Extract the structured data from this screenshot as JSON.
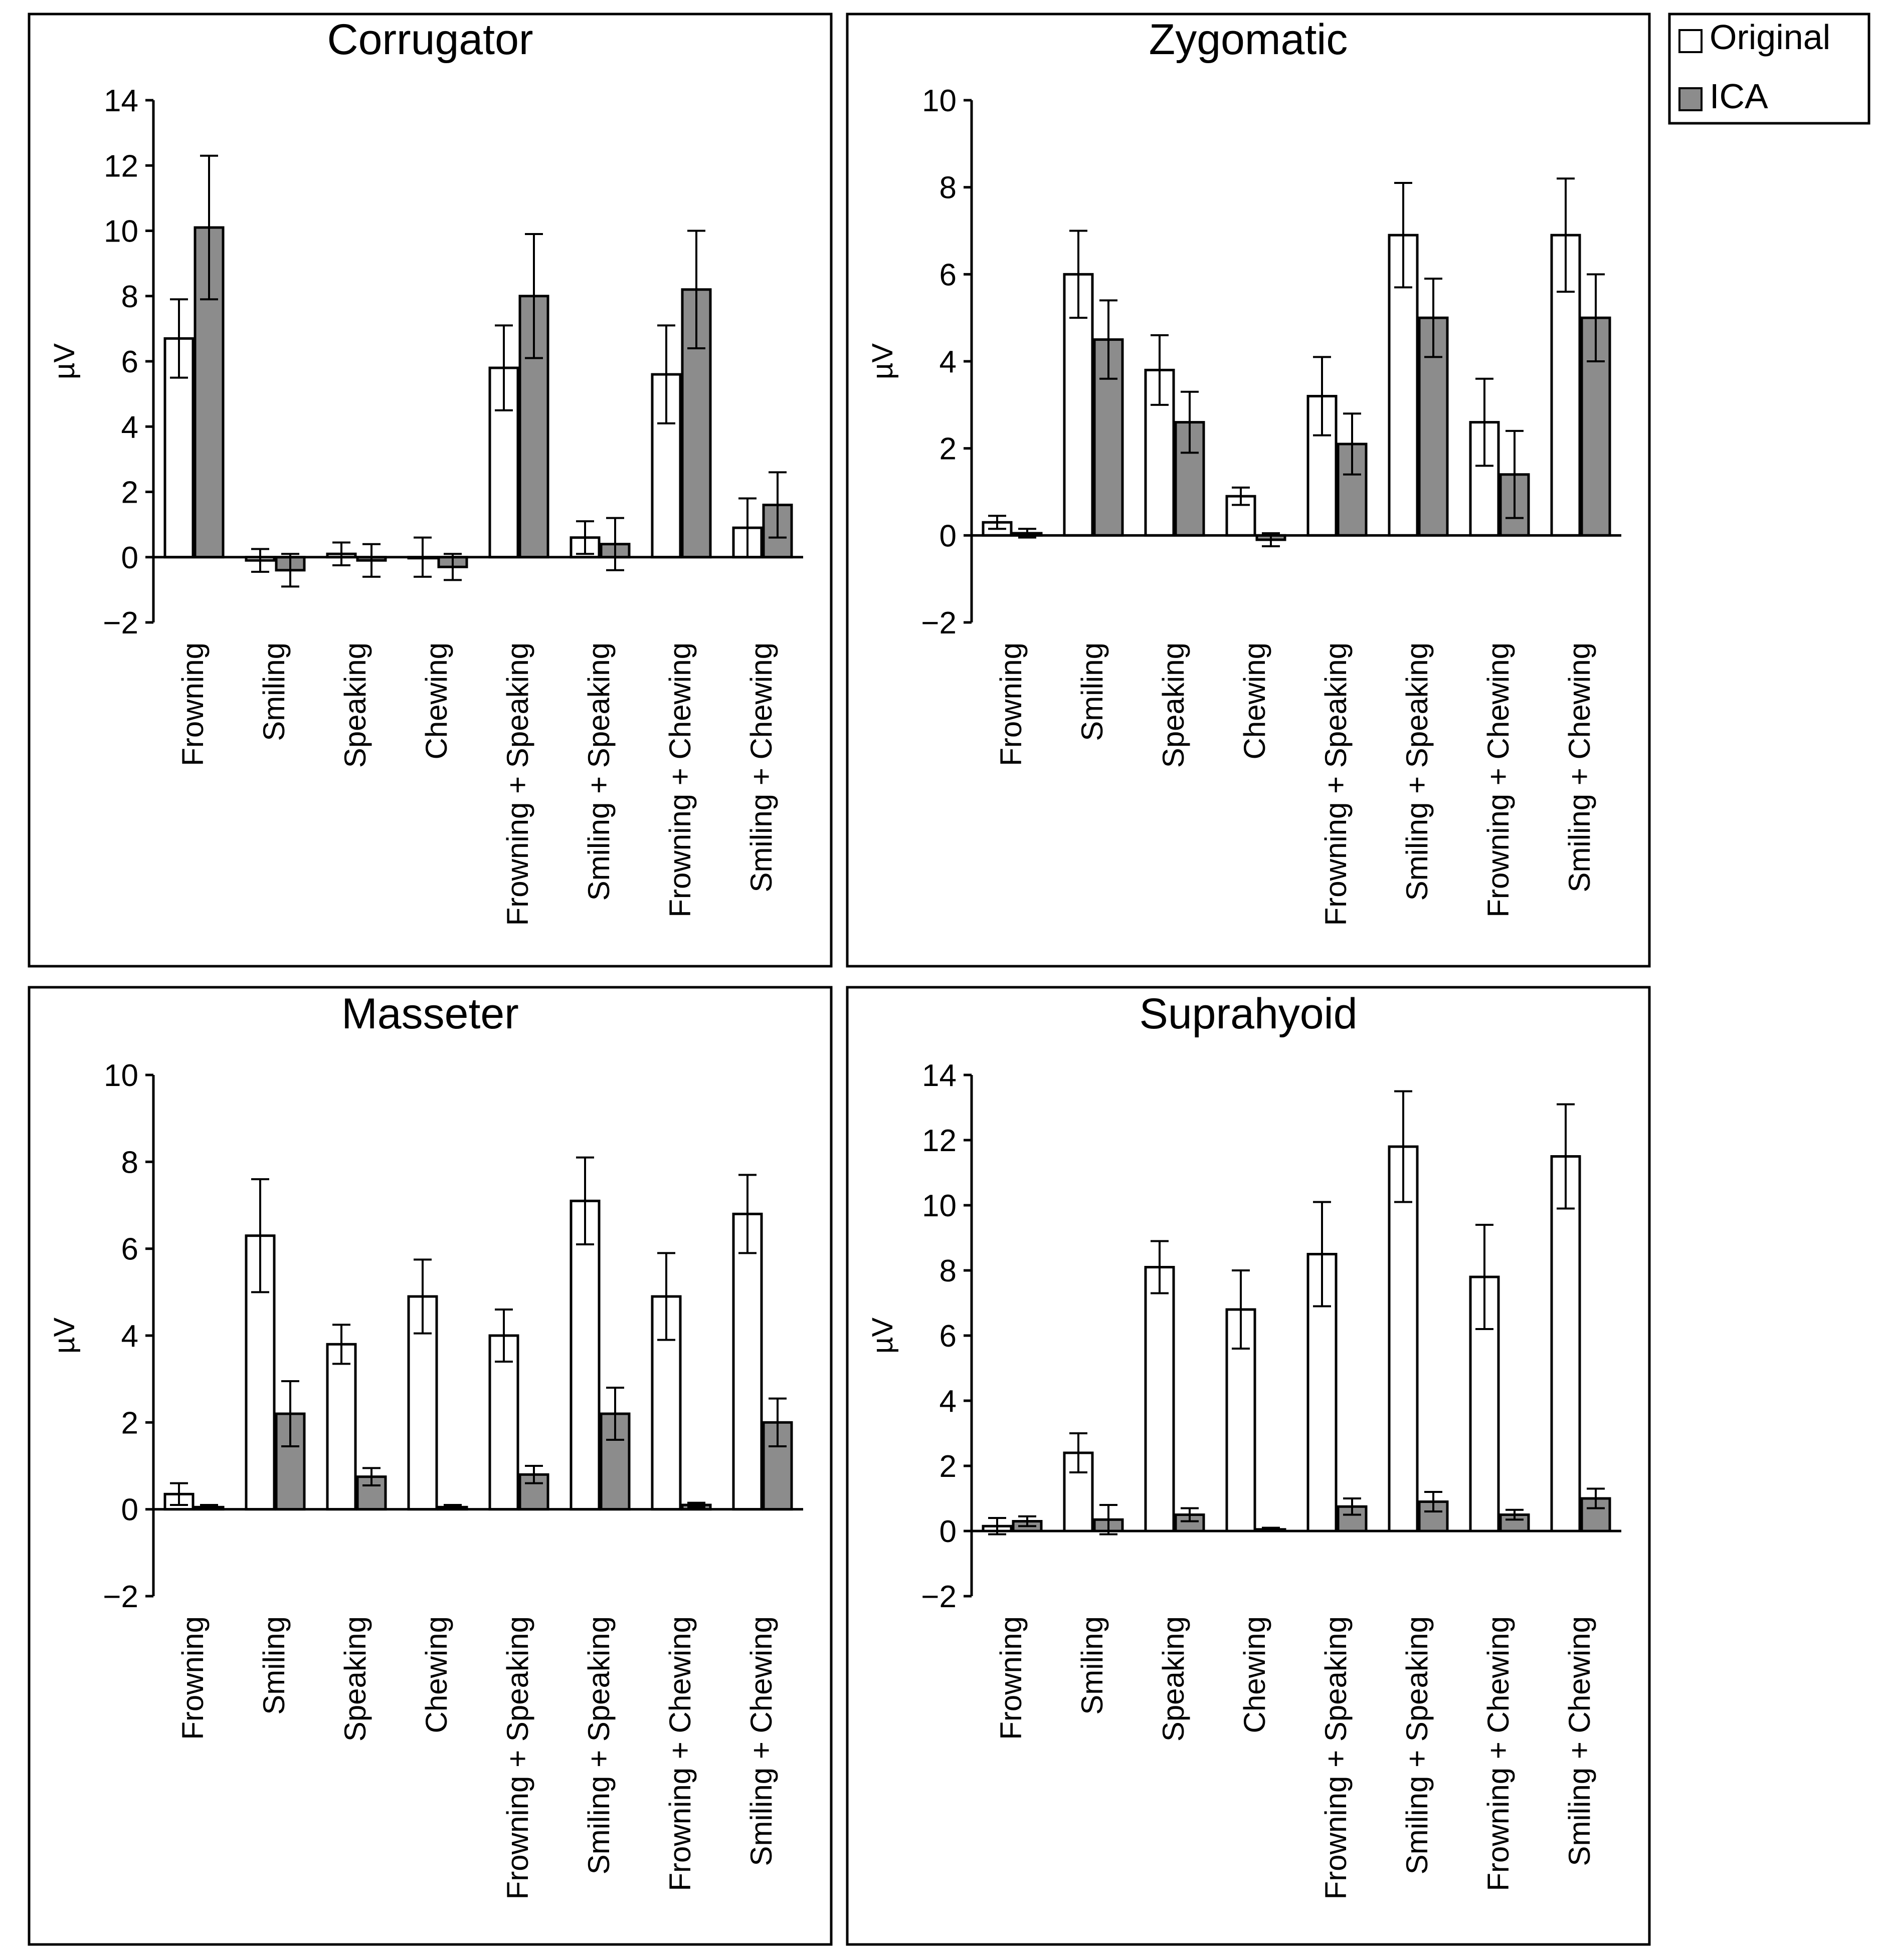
{
  "legend": {
    "entries": [
      {
        "label": "Original",
        "color": "#ffffff"
      },
      {
        "label": "ICA",
        "color": "#8c8c8c"
      }
    ]
  },
  "colors": {
    "original": "#ffffff",
    "ica": "#8c8c8c",
    "axis": "#000000"
  },
  "chart_data": [
    {
      "type": "bar",
      "title": "Corrugator",
      "ylabel": "µV",
      "ylim": [
        -2,
        14
      ],
      "yticks": [
        "14",
        "12",
        "10",
        "8",
        "6",
        "4",
        "2",
        "0",
        "−2"
      ],
      "categories": [
        "Frowning",
        "Smiling",
        "Speaking",
        "Chewing",
        "Frowning + Speaking",
        "Smiling + Speaking",
        "Frowning + Chewing",
        "Smiling + Chewing"
      ],
      "series": [
        {
          "name": "Original",
          "values": [
            6.7,
            -0.1,
            0.1,
            0.0,
            5.8,
            0.6,
            5.6,
            0.9
          ],
          "errors": [
            1.2,
            0.35,
            0.35,
            0.6,
            1.3,
            0.5,
            1.5,
            0.9
          ]
        },
        {
          "name": "ICA",
          "values": [
            10.1,
            -0.4,
            -0.1,
            -0.3,
            8.0,
            0.4,
            8.2,
            1.6
          ],
          "errors": [
            2.2,
            0.5,
            0.5,
            0.4,
            1.9,
            0.8,
            1.8,
            1.0
          ]
        }
      ]
    },
    {
      "type": "bar",
      "title": "Zygomatic",
      "ylabel": "µV",
      "ylim": [
        -2,
        10
      ],
      "yticks": [
        "10",
        "8",
        "6",
        "4",
        "2",
        "0",
        "−2"
      ],
      "categories": [
        "Frowning",
        "Smiling",
        "Speaking",
        "Chewing",
        "Frowning + Speaking",
        "Smiling + Speaking",
        "Frowning + Chewing",
        "Smiling + Chewing"
      ],
      "series": [
        {
          "name": "Original",
          "values": [
            0.3,
            6.0,
            3.8,
            0.9,
            3.2,
            6.9,
            2.6,
            6.9
          ],
          "errors": [
            0.15,
            1.0,
            0.8,
            0.2,
            0.9,
            1.2,
            1.0,
            1.3
          ]
        },
        {
          "name": "ICA",
          "values": [
            0.05,
            4.5,
            2.6,
            -0.1,
            2.1,
            5.0,
            1.4,
            5.0
          ],
          "errors": [
            0.1,
            0.9,
            0.7,
            0.15,
            0.7,
            0.9,
            1.0,
            1.0
          ]
        }
      ]
    },
    {
      "type": "bar",
      "title": "Masseter",
      "ylabel": "µV",
      "ylim": [
        -2,
        10
      ],
      "yticks": [
        "10",
        "8",
        "6",
        "4",
        "2",
        "0",
        "−2"
      ],
      "categories": [
        "Frowning",
        "Smiling",
        "Speaking",
        "Chewing",
        "Frowning + Speaking",
        "Smiling + Speaking",
        "Frowning + Chewing",
        "Smiling + Chewing"
      ],
      "series": [
        {
          "name": "Original",
          "values": [
            0.35,
            6.3,
            3.8,
            4.9,
            4.0,
            7.1,
            4.9,
            6.8
          ],
          "errors": [
            0.25,
            1.3,
            0.45,
            0.85,
            0.6,
            1.0,
            1.0,
            0.9
          ]
        },
        {
          "name": "ICA",
          "values": [
            0.05,
            2.2,
            0.75,
            0.05,
            0.8,
            2.2,
            0.1,
            2.0
          ],
          "errors": [
            0.05,
            0.75,
            0.2,
            0.05,
            0.2,
            0.6,
            0.05,
            0.55
          ]
        }
      ]
    },
    {
      "type": "bar",
      "title": "Suprahyoid",
      "ylabel": "µV",
      "ylim": [
        -2,
        14
      ],
      "yticks": [
        "14",
        "12",
        "10",
        "8",
        "6",
        "4",
        "2",
        "0",
        "−2"
      ],
      "categories": [
        "Frowning",
        "Smiling",
        "Speaking",
        "Chewing",
        "Frowning + Speaking",
        "Smiling + Speaking",
        "Frowning + Chewing",
        "Smiling + Chewing"
      ],
      "series": [
        {
          "name": "Original",
          "values": [
            0.15,
            2.4,
            8.1,
            6.8,
            8.5,
            11.8,
            7.8,
            11.5
          ],
          "errors": [
            0.25,
            0.6,
            0.8,
            1.2,
            1.6,
            1.7,
            1.6,
            1.6
          ]
        },
        {
          "name": "ICA",
          "values": [
            0.3,
            0.35,
            0.5,
            0.05,
            0.75,
            0.9,
            0.5,
            1.0
          ],
          "errors": [
            0.15,
            0.45,
            0.2,
            0.05,
            0.25,
            0.3,
            0.15,
            0.3
          ]
        }
      ]
    }
  ]
}
